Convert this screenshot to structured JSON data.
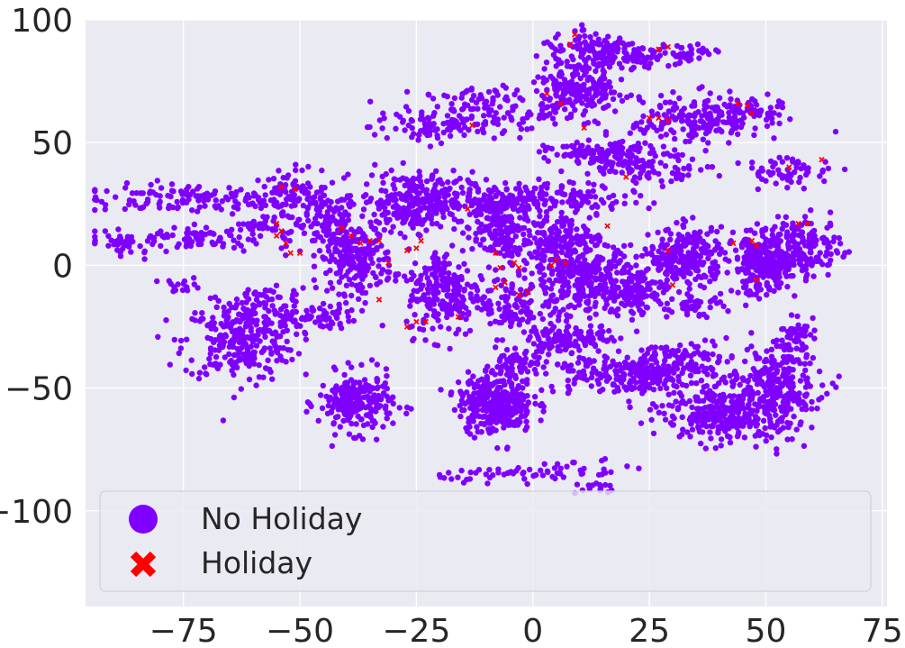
{
  "chart_data": {
    "type": "scatter",
    "title": "",
    "xlabel": "",
    "ylabel": "",
    "xlim": [
      -96,
      76
    ],
    "ylim": [
      -139,
      100
    ],
    "xticks": [
      -75,
      -50,
      -25,
      0,
      25,
      50,
      75
    ],
    "yticks": [
      100,
      50,
      0,
      -50,
      -100
    ],
    "xtick_labels": [
      "−75",
      "−50",
      "−25",
      "0",
      "25",
      "50",
      "75"
    ],
    "ytick_labels": [
      "100",
      "50",
      "0",
      "−50",
      "−100"
    ],
    "grid": true,
    "background": "#eaeaf2",
    "legend_placement": "lower-left",
    "series": [
      {
        "name": "No Holiday",
        "marker": "circle",
        "color": "#7f00ff",
        "clusters": [
          {
            "cx": -88,
            "cy": 9,
            "sx": 1.5,
            "sy": 2,
            "n": 25
          },
          {
            "cx": -73,
            "cy": 27,
            "sx": 12,
            "sy": 3,
            "n": 130
          },
          {
            "cx": -72,
            "cy": 11,
            "sx": 11,
            "sy": 2.5,
            "n": 110
          },
          {
            "cx": -52,
            "cy": 27,
            "sx": 4,
            "sy": 6,
            "n": 90
          },
          {
            "cx": -44,
            "cy": 19,
            "sx": 3,
            "sy": 6,
            "n": 80
          },
          {
            "cx": -58,
            "cy": 16,
            "sx": 3,
            "sy": 1.5,
            "n": 25
          },
          {
            "cx": -75,
            "cy": -8,
            "sx": 2,
            "sy": 1.5,
            "n": 15
          },
          {
            "cx": -58,
            "cy": -13,
            "sx": 5,
            "sy": 2,
            "n": 40
          },
          {
            "cx": -63,
            "cy": -31,
            "sx": 6,
            "sy": 8,
            "n": 260
          },
          {
            "cx": -50,
            "cy": -21,
            "sx": 6,
            "sy": 2.5,
            "n": 90
          },
          {
            "cx": -38,
            "cy": 3,
            "sx": 4,
            "sy": 7,
            "n": 240
          },
          {
            "cx": -38,
            "cy": -56,
            "sx": 4,
            "sy": 6,
            "n": 230
          },
          {
            "cx": -25,
            "cy": 26,
            "sx": 6,
            "sy": 6,
            "n": 300
          },
          {
            "cx": -19,
            "cy": -11,
            "sx": 4,
            "sy": 9,
            "n": 220
          },
          {
            "cx": -8,
            "cy": 25,
            "sx": 4,
            "sy": 4,
            "n": 130
          },
          {
            "cx": -10,
            "cy": 63,
            "sx": 7,
            "sy": 5,
            "n": 120
          },
          {
            "cx": -23,
            "cy": 56,
            "sx": 6,
            "sy": 3,
            "n": 70
          },
          {
            "cx": -7,
            "cy": 12,
            "sx": 3,
            "sy": 6,
            "n": 120
          },
          {
            "cx": -5,
            "cy": -17,
            "sx": 3,
            "sy": 6,
            "n": 100
          },
          {
            "cx": -8,
            "cy": -56,
            "sx": 4,
            "sy": 6,
            "n": 320
          },
          {
            "cx": -3,
            "cy": -40,
            "sx": 2.5,
            "sy": 3,
            "n": 60
          },
          {
            "cx": -4,
            "cy": -85,
            "sx": 8,
            "sy": 1.5,
            "n": 40
          },
          {
            "cx": 13,
            "cy": 88,
            "sx": 6,
            "sy": 3,
            "n": 90
          },
          {
            "cx": 20,
            "cy": 85,
            "sx": 6,
            "sy": 2.5,
            "n": 80
          },
          {
            "cx": 6,
            "cy": 73,
            "sx": 3,
            "sy": 5,
            "n": 80
          },
          {
            "cx": 12,
            "cy": 72,
            "sx": 4,
            "sy": 6,
            "n": 140
          },
          {
            "cx": 33,
            "cy": 86,
            "sx": 3,
            "sy": 2,
            "n": 35
          },
          {
            "cx": 35,
            "cy": 59,
            "sx": 7,
            "sy": 5,
            "n": 180
          },
          {
            "cx": 46,
            "cy": 63,
            "sx": 4,
            "sy": 3,
            "n": 60
          },
          {
            "cx": 15,
            "cy": 46,
            "sx": 6,
            "sy": 2,
            "n": 110
          },
          {
            "cx": 24,
            "cy": 40,
            "sx": 7,
            "sy": 2.5,
            "n": 90
          },
          {
            "cx": 55,
            "cy": 38,
            "sx": 5,
            "sy": 3,
            "n": 60
          },
          {
            "cx": 8,
            "cy": 28,
            "sx": 8,
            "sy": 3,
            "n": 110
          },
          {
            "cx": 6,
            "cy": 10,
            "sx": 4,
            "sy": 6,
            "n": 150
          },
          {
            "cx": 10,
            "cy": -6,
            "sx": 6,
            "sy": 8,
            "n": 340
          },
          {
            "cx": 22,
            "cy": -10,
            "sx": 4,
            "sy": 5,
            "n": 120
          },
          {
            "cx": 33,
            "cy": 3,
            "sx": 4,
            "sy": 6,
            "n": 250
          },
          {
            "cx": 35,
            "cy": -17,
            "sx": 3,
            "sy": 2,
            "n": 40
          },
          {
            "cx": 49,
            "cy": 0,
            "sx": 3,
            "sy": 6,
            "n": 250
          },
          {
            "cx": 58,
            "cy": 7,
            "sx": 4,
            "sy": 6,
            "n": 180
          },
          {
            "cx": 10,
            "cy": -30,
            "sx": 5,
            "sy": 2,
            "n": 80
          },
          {
            "cx": 4,
            "cy": -31,
            "sx": 2.5,
            "sy": 3,
            "n": 40
          },
          {
            "cx": 20,
            "cy": -44,
            "sx": 9,
            "sy": 4,
            "n": 240
          },
          {
            "cx": 32,
            "cy": -38,
            "sx": 5,
            "sy": 4,
            "n": 80
          },
          {
            "cx": 42,
            "cy": -60,
            "sx": 7,
            "sy": 6,
            "n": 330
          },
          {
            "cx": 52,
            "cy": -48,
            "sx": 5,
            "sy": 8,
            "n": 220
          },
          {
            "cx": 56,
            "cy": -28,
            "sx": 2,
            "sy": 3,
            "n": 40
          },
          {
            "cx": 10,
            "cy": -83,
            "sx": 6,
            "sy": 2,
            "n": 25
          },
          {
            "cx": 13,
            "cy": -91,
            "sx": 2,
            "sy": 1.5,
            "n": 15
          }
        ]
      },
      {
        "name": "Holiday",
        "marker": "x",
        "color": "#ff0000",
        "points": [
          [
            -54,
            32
          ],
          [
            -51,
            31
          ],
          [
            -55,
            17
          ],
          [
            -54,
            14
          ],
          [
            -55,
            12
          ],
          [
            -53,
            9
          ],
          [
            -52,
            5
          ],
          [
            -50,
            5
          ],
          [
            -41,
            15
          ],
          [
            -39,
            12
          ],
          [
            -37,
            9
          ],
          [
            -33,
            10
          ],
          [
            -35,
            10
          ],
          [
            -31,
            1
          ],
          [
            -33,
            -14
          ],
          [
            -27,
            6
          ],
          [
            -25,
            7
          ],
          [
            -24,
            10
          ],
          [
            -25,
            -23
          ],
          [
            -27,
            -25
          ],
          [
            -23,
            -23
          ],
          [
            -16,
            -21
          ],
          [
            -13,
            57
          ],
          [
            -14,
            23
          ],
          [
            -3,
            -1
          ],
          [
            -4,
            1
          ],
          [
            -7,
            -1
          ],
          [
            -8,
            5
          ],
          [
            -6,
            -7
          ],
          [
            -8,
            -9
          ],
          [
            -3,
            -12
          ],
          [
            -1,
            -11
          ],
          [
            3,
            70
          ],
          [
            6,
            66
          ],
          [
            9,
            94
          ],
          [
            8,
            90
          ],
          [
            11,
            56
          ],
          [
            4,
            0
          ],
          [
            5,
            2
          ],
          [
            7,
            1
          ],
          [
            16,
            16
          ],
          [
            20,
            36
          ],
          [
            27,
            88
          ],
          [
            29,
            89
          ],
          [
            25,
            60
          ],
          [
            27,
            60
          ],
          [
            29,
            59
          ],
          [
            29,
            6
          ],
          [
            30,
            -8
          ],
          [
            44,
            66
          ],
          [
            46,
            65
          ],
          [
            47,
            62
          ],
          [
            43,
            9
          ],
          [
            47,
            10
          ],
          [
            48,
            8
          ],
          [
            48,
            -6
          ],
          [
            57,
            17
          ],
          [
            59,
            17
          ],
          [
            62,
            43
          ],
          [
            55,
            40
          ]
        ]
      }
    ]
  }
}
